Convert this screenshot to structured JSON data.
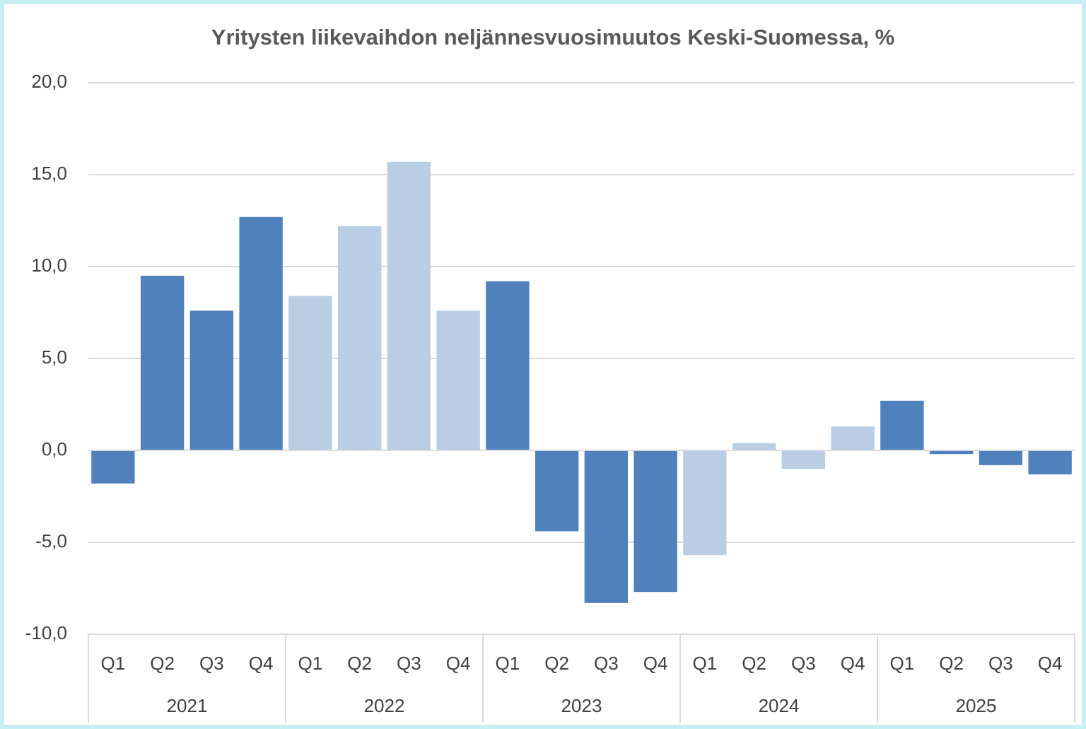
{
  "chart_data": {
    "type": "bar",
    "title": "Yritysten liikevaihdon neljännesvuosimuutos Keski-Suomessa, %",
    "categories": [
      "Q1",
      "Q2",
      "Q3",
      "Q4",
      "Q1",
      "Q2",
      "Q3",
      "Q4",
      "Q1",
      "Q2",
      "Q3",
      "Q4",
      "Q1",
      "Q2",
      "Q3",
      "Q4",
      "Q1",
      "Q2",
      "Q3",
      "Q4"
    ],
    "groups": [
      "2021",
      "2022",
      "2023",
      "2024",
      "2025"
    ],
    "values": [
      -1.8,
      9.5,
      7.6,
      12.7,
      8.4,
      12.2,
      15.7,
      7.6,
      9.2,
      -4.4,
      -8.3,
      -7.7,
      -5.7,
      0.4,
      -1.0,
      1.3,
      2.7,
      -0.2,
      -0.8,
      -1.3
    ],
    "group_colors": [
      "#4f81bd",
      "#b9cde5",
      "#4f81bd",
      "#b9cde5",
      "#4f81bd"
    ],
    "ylim": [
      -10,
      20
    ],
    "yticks": [
      {
        "value": -10,
        "label": "-10,0"
      },
      {
        "value": -5,
        "label": "-5,0"
      },
      {
        "value": 0,
        "label": "0,0"
      },
      {
        "value": 5,
        "label": "5,0"
      },
      {
        "value": 10,
        "label": "10,0"
      },
      {
        "value": 15,
        "label": "15,0"
      },
      {
        "value": 20,
        "label": "20,0"
      }
    ],
    "grid": true
  }
}
